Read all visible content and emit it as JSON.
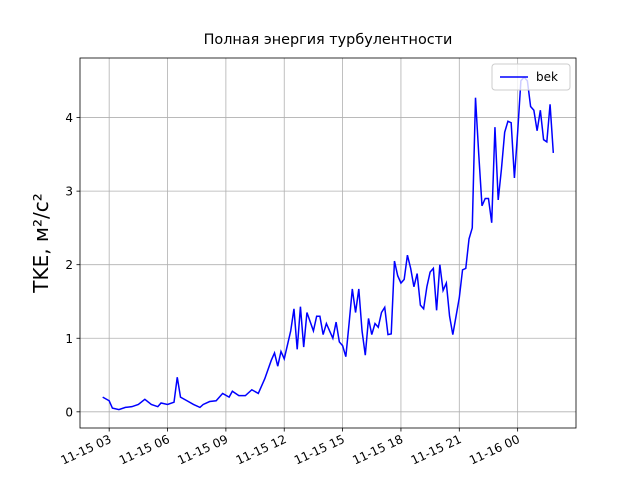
{
  "chart_data": {
    "type": "line",
    "title": "Полная энергия турбулентности",
    "y_label": "TKE, м²/с²",
    "x": [
      "11-15 02:40",
      "11-15 03:00",
      "11-15 03:10",
      "11-15 03:30",
      "11-15 03:50",
      "11-15 04:10",
      "11-15 04:30",
      "11-15 04:50",
      "11-15 05:10",
      "11-15 05:30",
      "11-15 05:40",
      "11-15 06:00",
      "11-15 06:20",
      "11-15 06:30",
      "11-15 06:40",
      "11-15 07:00",
      "11-15 07:20",
      "11-15 07:40",
      "11-15 07:50",
      "11-15 08:10",
      "11-15 08:30",
      "11-15 08:50",
      "11-15 09:10",
      "11-15 09:20",
      "11-15 09:40",
      "11-15 10:00",
      "11-15 10:20",
      "11-15 10:40",
      "11-15 11:00",
      "11-15 11:20",
      "11-15 11:30",
      "11-15 11:40",
      "11-15 11:50",
      "11-15 12:00",
      "11-15 12:20",
      "11-15 12:30",
      "11-15 12:40",
      "11-15 12:50",
      "11-15 13:00",
      "11-15 13:10",
      "11-15 13:30",
      "11-15 13:40",
      "11-15 13:50",
      "11-15 14:00",
      "11-15 14:10",
      "11-15 14:30",
      "11-15 14:40",
      "11-15 14:50",
      "11-15 15:00",
      "11-15 15:10",
      "11-15 15:20",
      "11-15 15:30",
      "11-15 15:40",
      "11-15 15:50",
      "11-15 16:00",
      "11-15 16:10",
      "11-15 16:20",
      "11-15 16:30",
      "11-15 16:40",
      "11-15 16:50",
      "11-15 17:00",
      "11-15 17:10",
      "11-15 17:20",
      "11-15 17:30",
      "11-15 17:40",
      "11-15 17:50",
      "11-15 18:00",
      "11-15 18:10",
      "11-15 18:20",
      "11-15 18:30",
      "11-15 18:40",
      "11-15 18:50",
      "11-15 19:00",
      "11-15 19:10",
      "11-15 19:20",
      "11-15 19:30",
      "11-15 19:40",
      "11-15 19:50",
      "11-15 20:00",
      "11-15 20:10",
      "11-15 20:20",
      "11-15 20:30",
      "11-15 20:40",
      "11-15 20:50",
      "11-15 21:00",
      "11-15 21:10",
      "11-15 21:20",
      "11-15 21:30",
      "11-15 21:40",
      "11-15 21:50",
      "11-15 22:00",
      "11-15 22:10",
      "11-15 22:20",
      "11-15 22:30",
      "11-15 22:40",
      "11-15 22:50",
      "11-15 23:00",
      "11-15 23:10",
      "11-15 23:20",
      "11-15 23:30",
      "11-15 23:40",
      "11-15 23:50",
      "11-16 00:00",
      "11-16 00:10",
      "11-16 00:20",
      "11-16 00:30",
      "11-16 00:40",
      "11-16 00:50",
      "11-16 01:00",
      "11-16 01:10",
      "11-16 01:20",
      "11-16 01:30",
      "11-16 01:40",
      "11-16 01:50"
    ],
    "series": [
      {
        "name": "bek",
        "color": "#0000ff",
        "values": [
          0.2,
          0.15,
          0.05,
          0.03,
          0.06,
          0.07,
          0.1,
          0.17,
          0.1,
          0.07,
          0.12,
          0.1,
          0.13,
          0.47,
          0.2,
          0.15,
          0.1,
          0.06,
          0.1,
          0.14,
          0.15,
          0.25,
          0.2,
          0.28,
          0.22,
          0.22,
          0.3,
          0.25,
          0.45,
          0.7,
          0.8,
          0.62,
          0.82,
          0.72,
          1.1,
          1.4,
          0.85,
          1.43,
          0.88,
          1.35,
          1.1,
          1.3,
          1.3,
          1.05,
          1.2,
          1.0,
          1.22,
          0.95,
          0.9,
          0.75,
          1.2,
          1.67,
          1.35,
          1.67,
          1.1,
          0.77,
          1.27,
          1.05,
          1.2,
          1.15,
          1.35,
          1.42,
          1.05,
          1.06,
          2.05,
          1.85,
          1.75,
          1.8,
          2.13,
          1.95,
          1.7,
          1.88,
          1.45,
          1.4,
          1.7,
          1.9,
          1.95,
          1.38,
          2.0,
          1.65,
          1.75,
          1.3,
          1.05,
          1.3,
          1.55,
          1.93,
          1.95,
          2.35,
          2.5,
          4.27,
          3.5,
          2.8,
          2.9,
          2.9,
          2.57,
          3.87,
          2.88,
          3.3,
          3.8,
          3.95,
          3.93,
          3.18,
          3.8,
          4.5,
          4.55,
          4.5,
          4.15,
          4.1,
          3.82,
          4.1,
          3.7,
          3.67,
          4.18,
          3.52
        ]
      }
    ],
    "xlim": [
      "11-15 01:30",
      "11-16 03:00"
    ],
    "xticks": [
      {
        "value": "11-15 03:00",
        "label": "11-15 03"
      },
      {
        "value": "11-15 06:00",
        "label": "11-15 06"
      },
      {
        "value": "11-15 09:00",
        "label": "11-15 09"
      },
      {
        "value": "11-15 12:00",
        "label": "11-15 12"
      },
      {
        "value": "11-15 15:00",
        "label": "11-15 15"
      },
      {
        "value": "11-15 18:00",
        "label": "11-15 18"
      },
      {
        "value": "11-15 21:00",
        "label": "11-15 21"
      },
      {
        "value": "11-16 00:00",
        "label": "11-16 00"
      }
    ],
    "ylim": [
      -0.22,
      4.81
    ],
    "yticks": [
      0,
      1,
      2,
      3,
      4
    ],
    "grid": true,
    "legend": "upper right"
  }
}
